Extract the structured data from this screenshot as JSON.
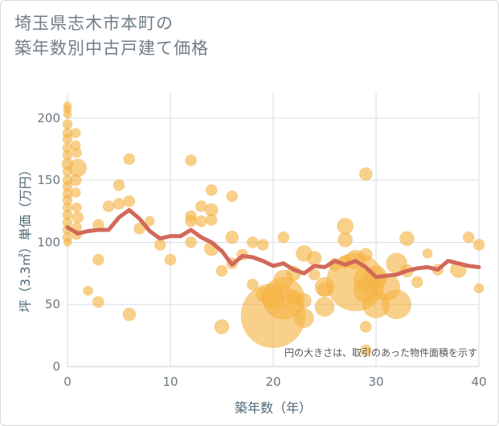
{
  "chart_data": {
    "type": "scatter",
    "title_lines": [
      "埼玉県志木市本町の",
      "築年数別中古戸建て価格"
    ],
    "xlabel": "築年数（年）",
    "ylabel": "坪（3.3㎡）単価（万円）",
    "xlim": [
      0,
      40
    ],
    "ylim": [
      0,
      220
    ],
    "xticks": [
      "0",
      "10",
      "20",
      "30",
      "40"
    ],
    "yticks": [
      "0",
      "50",
      "100",
      "150",
      "200"
    ],
    "grid": true,
    "annotation": "円の大きさは、取引のあった物件面積を示す",
    "colors": {
      "bubble": "#f5b342",
      "trend": "#d2695a",
      "grid": "#d6dee6"
    },
    "trend": {
      "x": [
        0,
        1,
        2,
        3,
        4,
        5,
        6,
        7,
        8,
        9,
        10,
        11,
        12,
        13,
        14,
        15,
        16,
        17,
        18,
        19,
        20,
        21,
        22,
        23,
        24,
        25,
        26,
        27,
        28,
        29,
        30,
        31,
        32,
        33,
        34,
        35,
        36,
        37,
        38,
        39,
        40
      ],
      "y": [
        112,
        107,
        109,
        110,
        110,
        120,
        126,
        119,
        109,
        103,
        105,
        105,
        110,
        104,
        100,
        93,
        82,
        89,
        88,
        85,
        81,
        83,
        78,
        75,
        81,
        80,
        85,
        82,
        85,
        80,
        72,
        73,
        74,
        77,
        79,
        80,
        78,
        85,
        83,
        81,
        80
      ]
    },
    "points": [
      {
        "x": 0,
        "y": 210,
        "s": 5
      },
      {
        "x": 0,
        "y": 207,
        "s": 5
      },
      {
        "x": 0,
        "y": 203,
        "s": 5
      },
      {
        "x": 0,
        "y": 195,
        "s": 6
      },
      {
        "x": 0,
        "y": 188,
        "s": 6
      },
      {
        "x": 0,
        "y": 183,
        "s": 6
      },
      {
        "x": 0,
        "y": 176,
        "s": 6
      },
      {
        "x": 0,
        "y": 170,
        "s": 6
      },
      {
        "x": 0,
        "y": 163,
        "s": 7
      },
      {
        "x": 0,
        "y": 157,
        "s": 6
      },
      {
        "x": 0,
        "y": 150,
        "s": 6
      },
      {
        "x": 0,
        "y": 145,
        "s": 6
      },
      {
        "x": 0,
        "y": 139,
        "s": 6
      },
      {
        "x": 0,
        "y": 134,
        "s": 6
      },
      {
        "x": 0,
        "y": 128,
        "s": 6
      },
      {
        "x": 0,
        "y": 122,
        "s": 6
      },
      {
        "x": 0,
        "y": 116,
        "s": 6
      },
      {
        "x": 0,
        "y": 110,
        "s": 6
      },
      {
        "x": 0,
        "y": 104,
        "s": 6
      },
      {
        "x": 0,
        "y": 100,
        "s": 5
      },
      {
        "x": 0.8,
        "y": 188,
        "s": 6
      },
      {
        "x": 0.8,
        "y": 178,
        "s": 6
      },
      {
        "x": 0.9,
        "y": 172,
        "s": 6
      },
      {
        "x": 1,
        "y": 160,
        "s": 11
      },
      {
        "x": 0.8,
        "y": 150,
        "s": 7
      },
      {
        "x": 0.8,
        "y": 140,
        "s": 6
      },
      {
        "x": 0.9,
        "y": 128,
        "s": 6
      },
      {
        "x": 1,
        "y": 120,
        "s": 7
      },
      {
        "x": 0.9,
        "y": 112,
        "s": 6
      },
      {
        "x": 0.9,
        "y": 106,
        "s": 6
      },
      {
        "x": 2,
        "y": 61,
        "s": 6
      },
      {
        "x": 3,
        "y": 114,
        "s": 7
      },
      {
        "x": 3,
        "y": 86,
        "s": 7
      },
      {
        "x": 3,
        "y": 52,
        "s": 7
      },
      {
        "x": 4,
        "y": 129,
        "s": 7
      },
      {
        "x": 5,
        "y": 146,
        "s": 7
      },
      {
        "x": 5,
        "y": 131,
        "s": 7
      },
      {
        "x": 6,
        "y": 167,
        "s": 7
      },
      {
        "x": 6,
        "y": 133,
        "s": 7
      },
      {
        "x": 6,
        "y": 42,
        "s": 8
      },
      {
        "x": 7,
        "y": 111,
        "s": 7
      },
      {
        "x": 8,
        "y": 117,
        "s": 6
      },
      {
        "x": 9,
        "y": 98,
        "s": 7
      },
      {
        "x": 10,
        "y": 86,
        "s": 7
      },
      {
        "x": 12,
        "y": 166,
        "s": 7
      },
      {
        "x": 12,
        "y": 121,
        "s": 7
      },
      {
        "x": 12,
        "y": 117,
        "s": 7
      },
      {
        "x": 12,
        "y": 100,
        "s": 7
      },
      {
        "x": 13,
        "y": 129,
        "s": 7
      },
      {
        "x": 13,
        "y": 117,
        "s": 7
      },
      {
        "x": 14,
        "y": 142,
        "s": 7
      },
      {
        "x": 14,
        "y": 126,
        "s": 8
      },
      {
        "x": 14,
        "y": 118,
        "s": 7
      },
      {
        "x": 14,
        "y": 95,
        "s": 9
      },
      {
        "x": 15,
        "y": 77,
        "s": 7
      },
      {
        "x": 15,
        "y": 32,
        "s": 9
      },
      {
        "x": 16,
        "y": 137,
        "s": 7
      },
      {
        "x": 16,
        "y": 104,
        "s": 8
      },
      {
        "x": 16,
        "y": 83,
        "s": 7
      },
      {
        "x": 17,
        "y": 90,
        "s": 7
      },
      {
        "x": 18,
        "y": 100,
        "s": 7
      },
      {
        "x": 18,
        "y": 66,
        "s": 7
      },
      {
        "x": 19,
        "y": 98,
        "s": 7
      },
      {
        "x": 19,
        "y": 58,
        "s": 9
      },
      {
        "x": 20,
        "y": 41,
        "s": 40
      },
      {
        "x": 20,
        "y": 55,
        "s": 14
      },
      {
        "x": 21,
        "y": 104,
        "s": 7
      },
      {
        "x": 21,
        "y": 70,
        "s": 12
      },
      {
        "x": 21,
        "y": 55,
        "s": 26
      },
      {
        "x": 22,
        "y": 75,
        "s": 9
      },
      {
        "x": 22,
        "y": 56,
        "s": 9
      },
      {
        "x": 23,
        "y": 91,
        "s": 10
      },
      {
        "x": 23,
        "y": 39,
        "s": 12
      },
      {
        "x": 23,
        "y": 53,
        "s": 9
      },
      {
        "x": 24,
        "y": 87,
        "s": 9
      },
      {
        "x": 24,
        "y": 74,
        "s": 7
      },
      {
        "x": 25,
        "y": 64,
        "s": 12
      },
      {
        "x": 25,
        "y": 62,
        "s": 9
      },
      {
        "x": 25,
        "y": 48,
        "s": 12
      },
      {
        "x": 26,
        "y": 82,
        "s": 8
      },
      {
        "x": 27,
        "y": 113,
        "s": 10
      },
      {
        "x": 27,
        "y": 102,
        "s": 9
      },
      {
        "x": 27,
        "y": 84,
        "s": 8
      },
      {
        "x": 28,
        "y": 68,
        "s": 36
      },
      {
        "x": 28,
        "y": 86,
        "s": 12
      },
      {
        "x": 29,
        "y": 155,
        "s": 8
      },
      {
        "x": 29,
        "y": 90,
        "s": 8
      },
      {
        "x": 29,
        "y": 70,
        "s": 15
      },
      {
        "x": 29,
        "y": 61,
        "s": 15
      },
      {
        "x": 29,
        "y": 32,
        "s": 7
      },
      {
        "x": 29,
        "y": 13,
        "s": 7
      },
      {
        "x": 30,
        "y": 72,
        "s": 14
      },
      {
        "x": 30,
        "y": 50,
        "s": 17
      },
      {
        "x": 31,
        "y": 64,
        "s": 17
      },
      {
        "x": 32,
        "y": 83,
        "s": 13
      },
      {
        "x": 32,
        "y": 50,
        "s": 18
      },
      {
        "x": 33,
        "y": 103,
        "s": 9
      },
      {
        "x": 33,
        "y": 77,
        "s": 8
      },
      {
        "x": 34,
        "y": 68,
        "s": 7
      },
      {
        "x": 35,
        "y": 91,
        "s": 6
      },
      {
        "x": 36,
        "y": 78,
        "s": 7
      },
      {
        "x": 38,
        "y": 78,
        "s": 10
      },
      {
        "x": 39,
        "y": 104,
        "s": 7
      },
      {
        "x": 40,
        "y": 98,
        "s": 7
      },
      {
        "x": 40,
        "y": 63,
        "s": 6
      }
    ]
  }
}
